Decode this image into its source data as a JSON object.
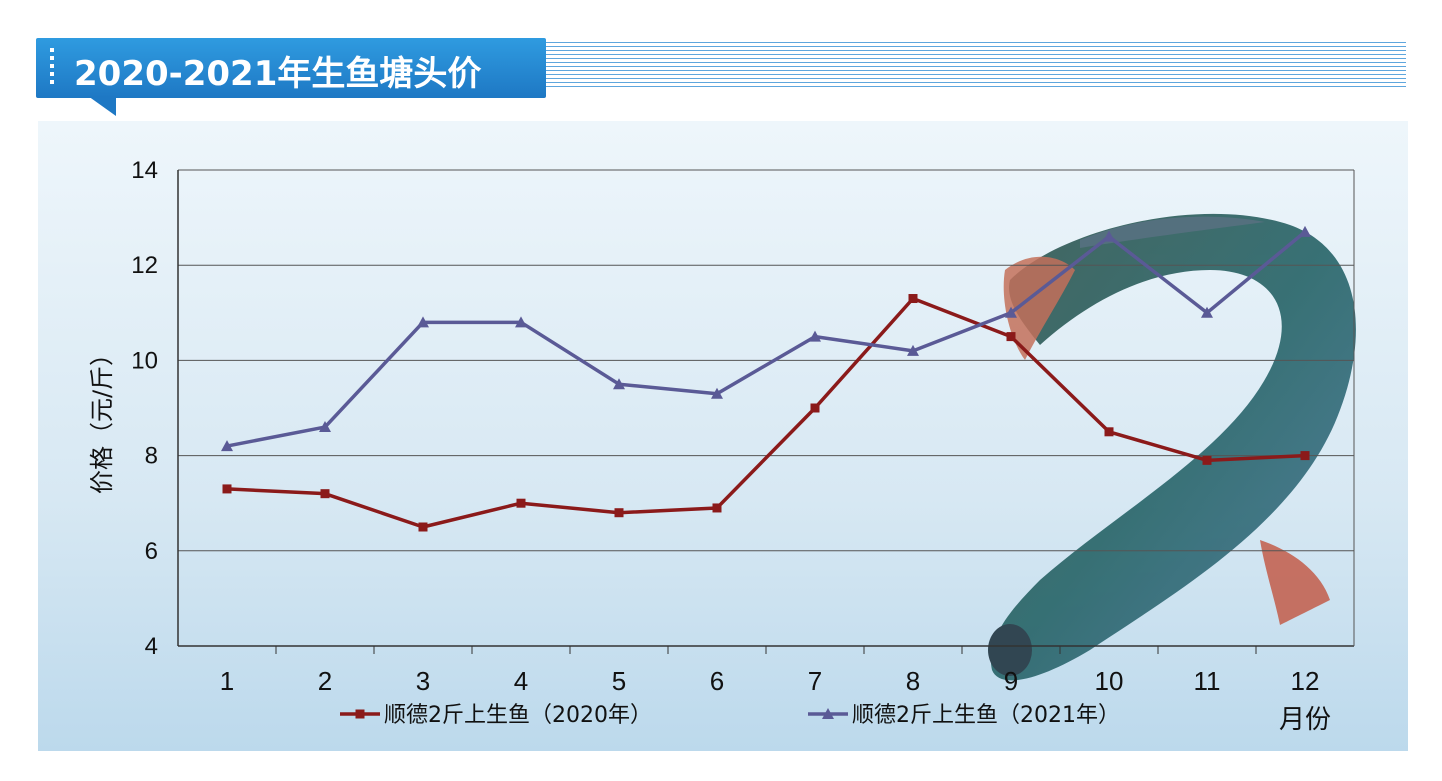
{
  "header": {
    "title": "2020-2021年生鱼塘头价"
  },
  "chart_data": {
    "type": "line",
    "ylabel": "价格（元/斤）",
    "xlabel": "月份",
    "ylim": [
      4,
      14
    ],
    "yticks": [
      "4",
      "6",
      "8",
      "10",
      "12",
      "14"
    ],
    "categories": [
      "1",
      "2",
      "3",
      "4",
      "5",
      "6",
      "7",
      "8",
      "9",
      "10",
      "11",
      "12"
    ],
    "grid": true,
    "legend_position": "bottom",
    "series": [
      {
        "name": "顺德2斤上生鱼（2020年）",
        "marker": "square",
        "color": "#8b1a1a",
        "values": [
          7.3,
          7.2,
          6.5,
          7.0,
          6.8,
          6.9,
          9.0,
          11.3,
          10.5,
          8.5,
          7.9,
          8.0
        ]
      },
      {
        "name": "顺德2斤上生鱼（2021年）",
        "marker": "triangle",
        "color": "#5a5a96",
        "values": [
          8.2,
          8.6,
          10.8,
          10.8,
          9.5,
          9.3,
          10.5,
          10.2,
          11.0,
          12.6,
          11.0,
          12.7
        ]
      }
    ]
  }
}
